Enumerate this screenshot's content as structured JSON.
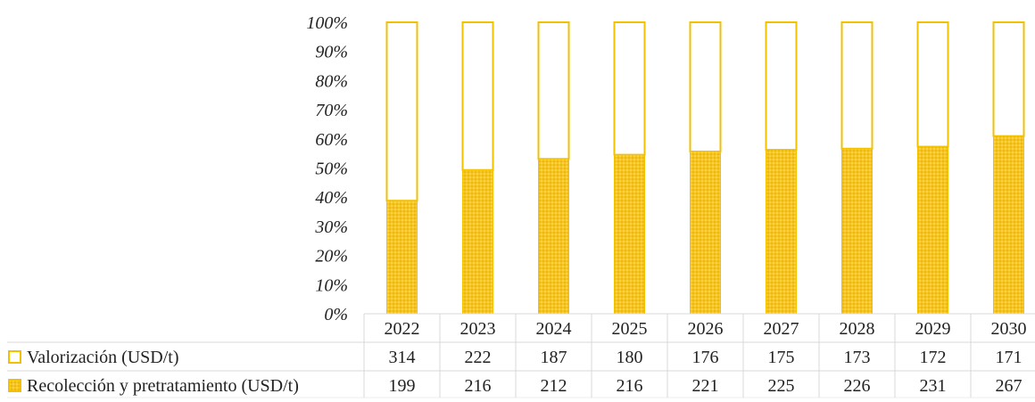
{
  "chart_data": {
    "type": "bar",
    "stacked": "100%",
    "categories": [
      "2022",
      "2023",
      "2024",
      "2025",
      "2026",
      "2027",
      "2028",
      "2029",
      "2030"
    ],
    "series": [
      {
        "name": "Valorización (USD/t)",
        "values": [
          314,
          222,
          187,
          180,
          176,
          175,
          173,
          172,
          171
        ],
        "color": "#ffffff",
        "border": "#f2c200"
      },
      {
        "name": "Recolección y pretratamiento (USD/t)",
        "values": [
          199,
          216,
          212,
          216,
          221,
          225,
          226,
          231,
          267
        ],
        "color": "#f5c518",
        "border": "#f2c200"
      }
    ],
    "yaxis": {
      "ticks": [
        "100%",
        "90%",
        "80%",
        "70%",
        "60%",
        "50%",
        "40%",
        "30%",
        "20%",
        "10%",
        "0%"
      ],
      "ylim": [
        0,
        100
      ]
    },
    "data_table": true,
    "grid": false,
    "colors": {
      "accent": "#f2c200",
      "fill": "#f5c518",
      "grid_line": "#d8d8d8"
    }
  }
}
